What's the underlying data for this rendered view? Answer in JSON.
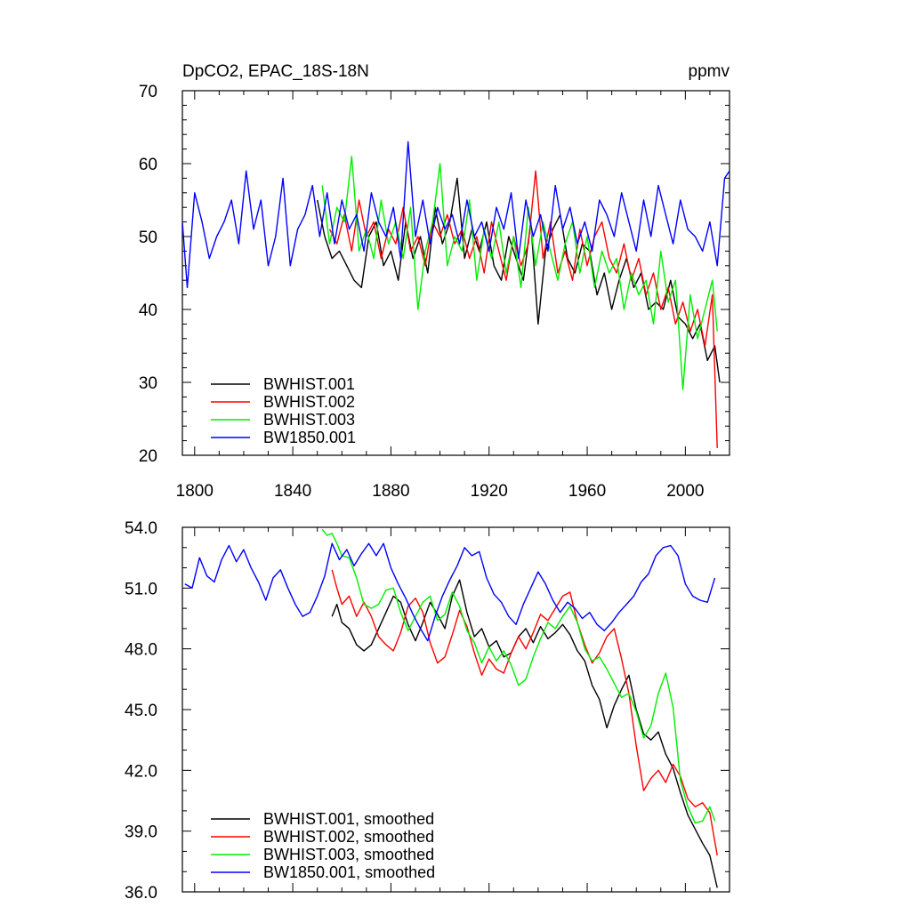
{
  "chart_data": [
    {
      "type": "line",
      "title": "DpCO2, EPAC_18S-18N",
      "units": "ppmv",
      "xlabel": "",
      "ylabel": "",
      "xlim": [
        1795,
        2018
      ],
      "ylim": [
        20,
        70
      ],
      "xticks": [
        1800,
        1840,
        1880,
        1920,
        1960,
        2000
      ],
      "xtick_labels": [
        "1800",
        "1840",
        "1880",
        "1920",
        "1960",
        "2000"
      ],
      "yticks": [
        20,
        30,
        40,
        50,
        60,
        70
      ],
      "ytick_labels": [
        "20",
        "30",
        "40",
        "50",
        "60",
        "70"
      ],
      "grid": false,
      "legend_position": "bottom-left",
      "series": [
        {
          "name": "BWHIST.001",
          "color": "#000000",
          "x": [
            1850,
            1853,
            1856,
            1859,
            1862,
            1865,
            1868,
            1871,
            1874,
            1877,
            1880,
            1883,
            1886,
            1889,
            1892,
            1895,
            1898,
            1901,
            1904,
            1907,
            1910,
            1913,
            1916,
            1919,
            1922,
            1925,
            1928,
            1931,
            1934,
            1937,
            1940,
            1943,
            1946,
            1949,
            1952,
            1955,
            1958,
            1961,
            1964,
            1967,
            1970,
            1973,
            1976,
            1979,
            1982,
            1985,
            1988,
            1991,
            1994,
            1997,
            2000,
            2003,
            2006,
            2009,
            2012,
            2014
          ],
          "values": [
            55,
            50,
            47,
            48,
            46,
            44,
            43,
            50,
            52,
            46,
            48,
            44,
            52,
            47,
            50,
            45,
            54,
            49,
            52,
            58,
            47,
            51,
            48,
            52,
            46,
            44,
            50,
            47,
            44,
            52,
            38,
            48,
            51,
            53,
            47,
            45,
            49,
            48,
            42,
            45,
            40,
            44,
            47,
            43,
            45,
            40,
            41,
            40,
            44,
            39,
            38,
            36,
            38,
            33,
            35,
            30
          ]
        },
        {
          "name": "BWHIST.002",
          "color": "#ff0000",
          "x": [
            1855,
            1858,
            1861,
            1864,
            1867,
            1870,
            1873,
            1876,
            1879,
            1882,
            1885,
            1888,
            1891,
            1894,
            1897,
            1900,
            1903,
            1906,
            1909,
            1912,
            1915,
            1918,
            1921,
            1924,
            1927,
            1930,
            1933,
            1936,
            1939,
            1942,
            1945,
            1948,
            1951,
            1954,
            1957,
            1960,
            1963,
            1966,
            1969,
            1972,
            1975,
            1978,
            1981,
            1984,
            1987,
            1990,
            1993,
            1996,
            1999,
            2002,
            2005,
            2008,
            2011,
            2013
          ],
          "values": [
            51,
            49,
            53,
            48,
            55,
            50,
            52,
            47,
            51,
            49,
            54,
            48,
            50,
            46,
            52,
            50,
            53,
            49,
            51,
            47,
            50,
            45,
            52,
            48,
            44,
            50,
            46,
            49,
            59,
            47,
            52,
            45,
            48,
            44,
            51,
            46,
            50,
            52,
            47,
            45,
            49,
            44,
            47,
            42,
            45,
            40,
            43,
            38,
            41,
            37,
            40,
            35,
            42,
            21
          ]
        },
        {
          "name": "BWHIST.003",
          "color": "#00ee00",
          "x": [
            1852,
            1855,
            1858,
            1861,
            1864,
            1867,
            1870,
            1873,
            1876,
            1879,
            1882,
            1885,
            1888,
            1891,
            1894,
            1897,
            1900,
            1903,
            1906,
            1909,
            1912,
            1915,
            1918,
            1921,
            1924,
            1927,
            1930,
            1933,
            1936,
            1939,
            1942,
            1945,
            1948,
            1951,
            1954,
            1957,
            1960,
            1963,
            1966,
            1969,
            1972,
            1975,
            1978,
            1981,
            1984,
            1987,
            1990,
            1993,
            1996,
            1999,
            2002,
            2005,
            2008,
            2011,
            2013
          ],
          "values": [
            57,
            49,
            54,
            52,
            61,
            48,
            51,
            47,
            55,
            49,
            52,
            47,
            54,
            40,
            48,
            52,
            60,
            46,
            50,
            48,
            55,
            44,
            51,
            47,
            52,
            45,
            50,
            43,
            54,
            46,
            52,
            48,
            44,
            49,
            52,
            45,
            50,
            43,
            48,
            45,
            47,
            40,
            45,
            42,
            44,
            38,
            48,
            41,
            44,
            29,
            42,
            36,
            40,
            44,
            37
          ]
        },
        {
          "name": "BW1850.001",
          "color": "#0000ff",
          "x": [
            1795,
            1797,
            1800,
            1803,
            1806,
            1809,
            1812,
            1815,
            1818,
            1821,
            1824,
            1827,
            1830,
            1833,
            1836,
            1839,
            1842,
            1845,
            1848,
            1851,
            1854,
            1857,
            1860,
            1863,
            1866,
            1869,
            1872,
            1875,
            1878,
            1881,
            1884,
            1887,
            1890,
            1893,
            1896,
            1899,
            1902,
            1905,
            1908,
            1911,
            1914,
            1917,
            1920,
            1923,
            1926,
            1929,
            1932,
            1935,
            1938,
            1941,
            1944,
            1947,
            1950,
            1953,
            1956,
            1959,
            1962,
            1965,
            1968,
            1971,
            1974,
            1977,
            1980,
            1983,
            1986,
            1989,
            1992,
            1995,
            1998,
            2001,
            2004,
            2007,
            2010,
            2013,
            2016,
            2018
          ],
          "values": [
            52,
            43,
            56,
            52,
            47,
            50,
            52,
            55,
            49,
            59,
            51,
            55,
            46,
            50,
            58,
            46,
            51,
            53,
            57,
            50,
            56,
            49,
            55,
            51,
            53,
            48,
            56,
            52,
            50,
            54,
            47,
            63,
            50,
            55,
            49,
            54,
            51,
            53,
            49,
            55,
            50,
            52,
            48,
            54,
            51,
            56,
            47,
            55,
            50,
            53,
            48,
            57,
            51,
            54,
            49,
            52,
            48,
            55,
            53,
            50,
            56,
            52,
            48,
            55,
            50,
            57,
            53,
            49,
            55,
            51,
            50,
            48,
            52,
            46,
            58,
            59
          ]
        }
      ]
    },
    {
      "type": "line",
      "title": "",
      "xlabel": "",
      "ylabel": "",
      "xlim": [
        1795,
        2018
      ],
      "ylim": [
        36,
        54
      ],
      "xticks": [
        1800,
        1840,
        1880,
        1920,
        1960,
        2000
      ],
      "yticks": [
        36,
        39,
        42,
        45,
        48,
        51,
        54
      ],
      "ytick_labels": [
        "36.0",
        "39.0",
        "42.0",
        "45.0",
        "48.0",
        "51.0",
        "54.0"
      ],
      "grid": false,
      "legend_position": "bottom-left",
      "series": [
        {
          "name": "BWHIST.001, smoothed",
          "color": "#000000",
          "x": [
            1856,
            1858,
            1860,
            1863,
            1866,
            1869,
            1872,
            1875,
            1878,
            1881,
            1884,
            1887,
            1890,
            1893,
            1896,
            1899,
            1902,
            1905,
            1908,
            1911,
            1914,
            1917,
            1920,
            1923,
            1926,
            1929,
            1932,
            1935,
            1938,
            1941,
            1944,
            1947,
            1950,
            1953,
            1956,
            1959,
            1962,
            1965,
            1968,
            1971,
            1974,
            1977,
            1980,
            1983,
            1986,
            1989,
            1992,
            1995,
            1998,
            2001,
            2004,
            2007,
            2010,
            2013
          ],
          "values": [
            49.6,
            50.2,
            49.3,
            49.0,
            48.2,
            47.9,
            48.2,
            49.0,
            49.8,
            50.6,
            50.3,
            49.2,
            48.4,
            49.3,
            50.3,
            49.7,
            49.0,
            50.6,
            51.4,
            49.8,
            48.6,
            49.0,
            48.1,
            48.4,
            47.6,
            47.8,
            48.6,
            49.0,
            48.3,
            49.1,
            48.5,
            48.8,
            49.2,
            48.7,
            47.9,
            47.4,
            46.2,
            45.5,
            44.1,
            45.2,
            46.0,
            46.7,
            45.0,
            43.8,
            43.5,
            43.9,
            42.8,
            42.1,
            40.9,
            39.8,
            39.1,
            38.4,
            37.8,
            36.2
          ]
        },
        {
          "name": "BWHIST.002, smoothed",
          "color": "#ff0000",
          "x": [
            1856,
            1858,
            1860,
            1863,
            1866,
            1869,
            1872,
            1875,
            1878,
            1881,
            1884,
            1887,
            1890,
            1893,
            1896,
            1899,
            1902,
            1905,
            1908,
            1911,
            1914,
            1917,
            1920,
            1923,
            1926,
            1929,
            1932,
            1935,
            1938,
            1941,
            1944,
            1947,
            1950,
            1953,
            1956,
            1959,
            1962,
            1965,
            1968,
            1971,
            1974,
            1977,
            1980,
            1983,
            1986,
            1989,
            1992,
            1995,
            1998,
            2001,
            2004,
            2007,
            2010,
            2013
          ],
          "values": [
            51.9,
            51.0,
            50.2,
            50.6,
            49.6,
            50.3,
            49.6,
            48.6,
            48.2,
            47.9,
            48.8,
            50.1,
            50.5,
            49.8,
            48.3,
            47.3,
            47.6,
            48.7,
            49.9,
            49.1,
            47.8,
            46.7,
            47.5,
            47.0,
            46.8,
            47.8,
            48.6,
            48.0,
            48.8,
            49.7,
            49.4,
            50.0,
            50.6,
            50.8,
            49.3,
            48.2,
            47.3,
            47.8,
            48.6,
            49.0,
            47.5,
            45.8,
            43.2,
            41.0,
            41.6,
            42.0,
            41.4,
            42.3,
            41.7,
            40.6,
            40.2,
            40.4,
            39.9,
            37.8
          ]
        },
        {
          "name": "BWHIST.003, smoothed",
          "color": "#00ee00",
          "x": [
            1852,
            1854,
            1856,
            1858,
            1860,
            1863,
            1866,
            1869,
            1872,
            1875,
            1878,
            1881,
            1884,
            1887,
            1890,
            1893,
            1896,
            1899,
            1902,
            1905,
            1908,
            1911,
            1914,
            1917,
            1920,
            1923,
            1926,
            1929,
            1932,
            1935,
            1938,
            1941,
            1944,
            1947,
            1950,
            1953,
            1956,
            1959,
            1962,
            1965,
            1968,
            1971,
            1974,
            1977,
            1980,
            1983,
            1986,
            1989,
            1992,
            1995,
            1998,
            2001,
            2004,
            2007,
            2010,
            2012
          ],
          "values": [
            53.9,
            53.6,
            53.7,
            53.2,
            52.6,
            52.5,
            51.5,
            50.2,
            50.0,
            50.2,
            50.9,
            51.0,
            49.8,
            48.9,
            49.6,
            50.3,
            50.6,
            49.4,
            49.7,
            50.8,
            50.1,
            48.9,
            48.3,
            47.3,
            48.1,
            47.4,
            47.9,
            47.2,
            46.2,
            46.5,
            47.6,
            48.5,
            49.3,
            49.0,
            49.6,
            50.1,
            49.3,
            48.0,
            47.4,
            47.6,
            47.0,
            46.3,
            45.6,
            45.8,
            44.9,
            43.6,
            44.2,
            45.8,
            46.8,
            45.1,
            41.5,
            40.2,
            39.4,
            39.5,
            40.2,
            39.5
          ]
        },
        {
          "name": "BW1850.001, smoothed",
          "color": "#0000ff",
          "x": [
            1796,
            1799,
            1802,
            1805,
            1808,
            1811,
            1814,
            1817,
            1820,
            1823,
            1826,
            1829,
            1832,
            1835,
            1838,
            1841,
            1844,
            1847,
            1850,
            1853,
            1856,
            1859,
            1862,
            1865,
            1868,
            1871,
            1874,
            1877,
            1880,
            1883,
            1886,
            1889,
            1892,
            1895,
            1898,
            1901,
            1904,
            1907,
            1910,
            1913,
            1916,
            1919,
            1922,
            1925,
            1928,
            1931,
            1934,
            1937,
            1940,
            1943,
            1946,
            1949,
            1952,
            1955,
            1958,
            1961,
            1964,
            1967,
            1970,
            1973,
            1976,
            1979,
            1982,
            1985,
            1988,
            1991,
            1994,
            1997,
            2000,
            2003,
            2006,
            2009,
            2012
          ],
          "values": [
            51.2,
            51.0,
            52.5,
            51.6,
            51.3,
            52.4,
            53.1,
            52.3,
            52.9,
            52.0,
            51.3,
            50.4,
            51.5,
            51.9,
            51.0,
            50.2,
            49.6,
            49.8,
            50.6,
            51.6,
            53.2,
            52.4,
            52.9,
            52.1,
            52.7,
            53.2,
            52.6,
            53.2,
            52.0,
            51.2,
            50.5,
            49.7,
            49.0,
            48.4,
            49.6,
            50.6,
            51.4,
            52.1,
            53.0,
            52.6,
            52.8,
            51.5,
            50.7,
            50.3,
            49.6,
            49.2,
            50.2,
            51.0,
            51.8,
            51.2,
            50.4,
            49.8,
            50.3,
            50.0,
            49.5,
            49.8,
            49.2,
            48.9,
            49.3,
            49.8,
            50.2,
            50.6,
            51.3,
            51.7,
            52.6,
            53.0,
            53.1,
            52.6,
            51.2,
            50.6,
            50.4,
            50.3,
            51.5
          ]
        }
      ]
    }
  ]
}
